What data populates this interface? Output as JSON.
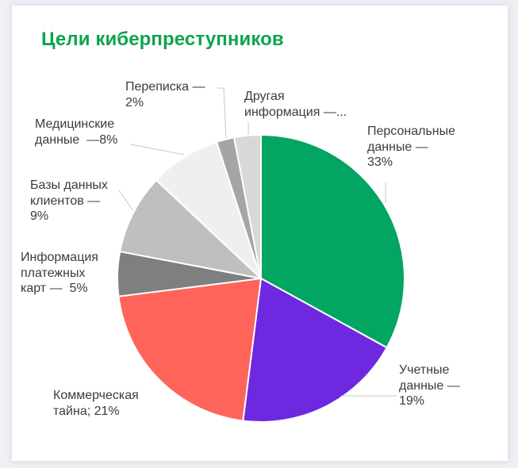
{
  "title": "Цели киберпреступников",
  "chart_data": {
    "type": "pie",
    "title": "Цели киберпреступников",
    "start_angle": "12 o'clock, clockwise",
    "slices": [
      {
        "label": "Персональные данные",
        "value": 33,
        "color": "#02a562"
      },
      {
        "label": "Учетные данные",
        "value": 19,
        "color": "#6e28e0"
      },
      {
        "label": "Коммерческая тайна",
        "value": 21,
        "color": "#ff645a"
      },
      {
        "label": "Информация платежных карт",
        "value": 5,
        "color": "#7f7f7f"
      },
      {
        "label": "Базы данных клиентов",
        "value": 9,
        "color": "#bfbfbf"
      },
      {
        "label": "Медицинские данные",
        "value": 8,
        "color": "#efefef"
      },
      {
        "label": "Переписка",
        "value": 2,
        "color": "#a5a5a5"
      },
      {
        "label": "Другая информация",
        "value": 3,
        "color": "#d8d8d8"
      }
    ]
  },
  "labels": {
    "personal": "Персональные\nданные —\n33%",
    "accounts": "Учетные\nданные —\n19%",
    "commercial": "Коммерческая\nтайна; 21%",
    "cards": "Информация\nплатежных\nкарт —  5%",
    "clients": "Базы данных\nклиентов —\n9%",
    "medical": "Медицинские\nданные  —8%",
    "correspondence": "Переписка —\n2%",
    "other": "Другая\nинформация —..."
  }
}
